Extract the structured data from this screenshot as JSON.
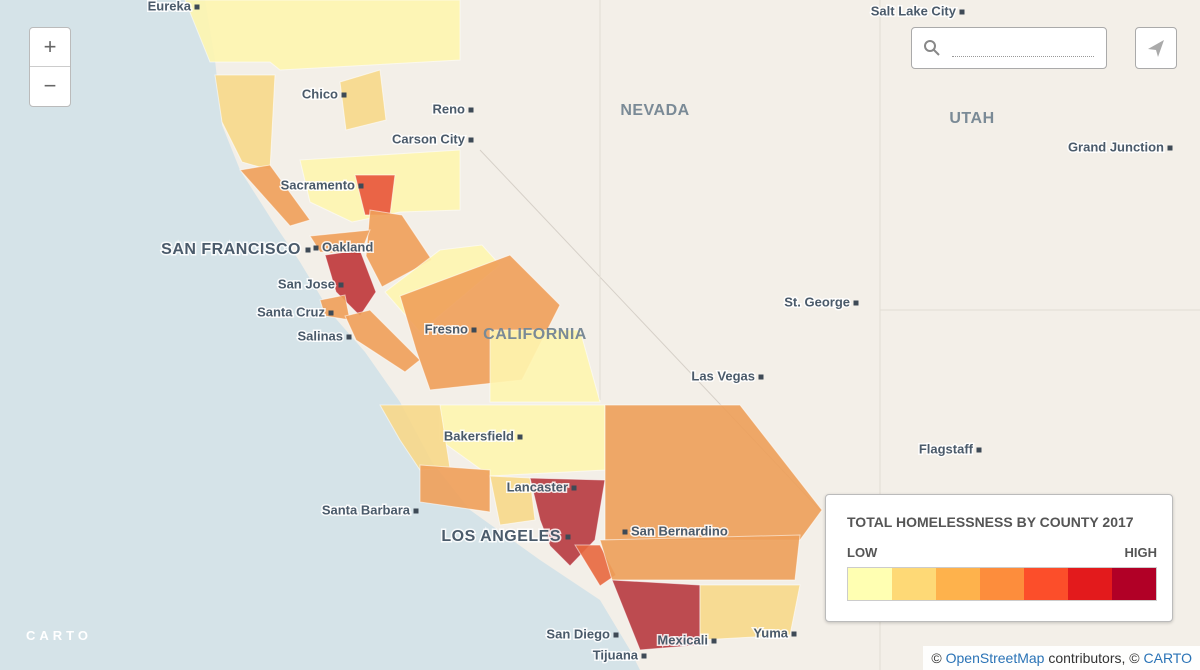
{
  "map": {
    "cities": [
      "Eureka",
      "Chico",
      "Reno",
      "Carson City",
      "Sacramento",
      "Oakland",
      "San Jose",
      "Santa Cruz",
      "Salinas",
      "Fresno",
      "Bakersfield",
      "Lancaster",
      "Santa Barbara",
      "San Bernardino",
      "San Diego",
      "Tijuana",
      "Mexicali",
      "Yuma",
      "Salt Lake City",
      "Grand Junction",
      "St. George",
      "Las Vegas",
      "Flagstaff"
    ],
    "major_cities": [
      "SAN FRANCISCO",
      "LOS ANGELES"
    ],
    "states": [
      "NEVADA",
      "UTAH",
      "CALIFORNIA"
    ]
  },
  "controls": {
    "zoom_in": "+",
    "zoom_out": "−"
  },
  "legend": {
    "title": "TOTAL HOMELESSNESS BY COUNTY 2017",
    "low": "LOW",
    "high": "HIGH",
    "colors": [
      "#ffffb2",
      "#fed976",
      "#feb24c",
      "#fd8d3c",
      "#fc4e2a",
      "#e31a1c",
      "#b10026"
    ]
  },
  "attribution": {
    "prefix": "©",
    "osm": "OpenStreetMap",
    "middle": "contributors, ©",
    "carto": "CARTO"
  },
  "logo": "CARTO"
}
